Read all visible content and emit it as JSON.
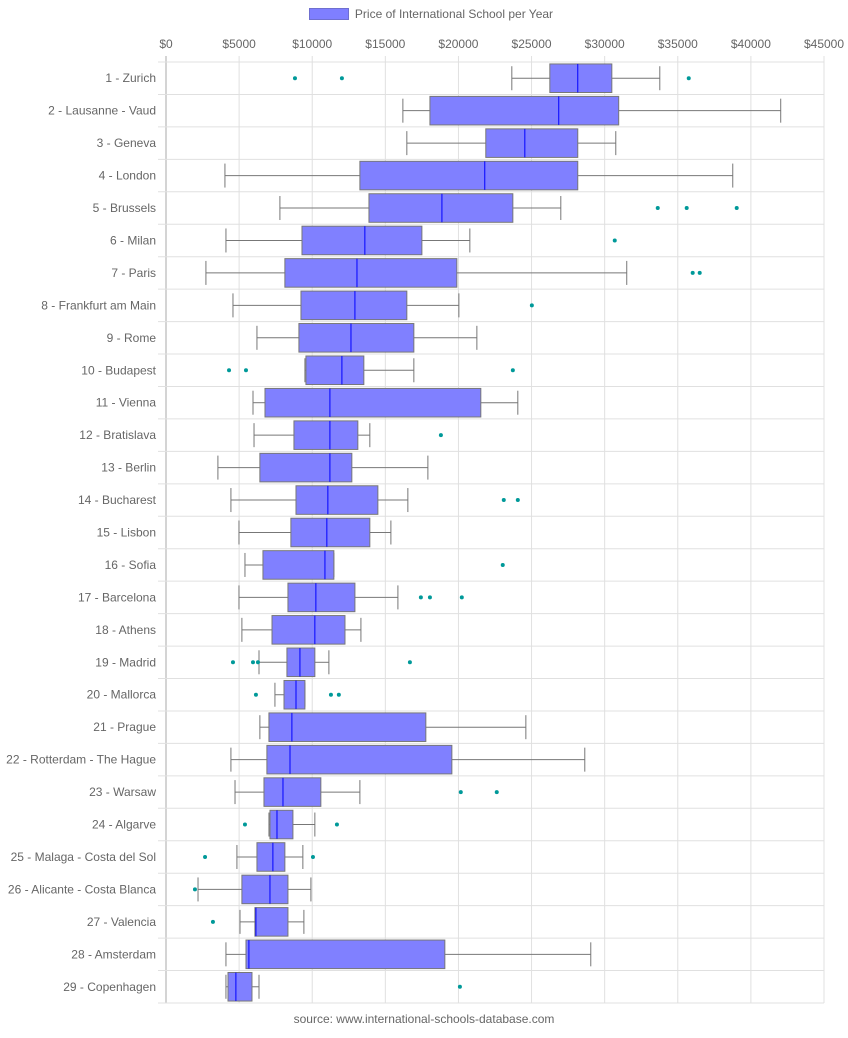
{
  "chart_data": {
    "type": "boxplot",
    "orientation": "horizontal",
    "title": "",
    "legend": {
      "label": "Price of International School per Year",
      "position": "top"
    },
    "source": "source: www.international-schools-database.com",
    "xlabel": "",
    "ylabel": "",
    "xlim": [
      0,
      45000
    ],
    "x_ticks": [
      "$0",
      "$5000",
      "$10000",
      "$15000",
      "$20000",
      "$25000",
      "$30000",
      "$35000",
      "$40000",
      "$45000"
    ],
    "x_tick_values": [
      0,
      5000,
      10000,
      15000,
      20000,
      25000,
      30000,
      35000,
      40000,
      45000
    ],
    "grid": true,
    "colors": {
      "box_fill": "#8080ff",
      "box_stroke": "#777777",
      "median": "#0000ff",
      "whisker": "#777777",
      "outlier": "#009999",
      "grid": "#e0e0e0"
    },
    "categories": [
      "1 - Zurich",
      "2 - Lausanne - Vaud",
      "3 - Geneva",
      "4 - London",
      "5 - Brussels",
      "6 - Milan",
      "7 - Paris",
      "8 - Frankfurt am Main",
      "9 - Rome",
      "10 - Budapest",
      "11 - Vienna",
      "12 - Bratislava",
      "13 - Berlin",
      "14 - Bucharest",
      "15 - Lisbon",
      "16 - Sofia",
      "17 - Barcelona",
      "18 - Athens",
      "19 - Madrid",
      "20 - Mallorca",
      "21 - Prague",
      "22 - Rotterdam - The Hague",
      "23 - Warsaw",
      "24 - Algarve",
      "25 - Malaga - Costa del Sol",
      "26 - Alicante - Costa Blanca",
      "27 - Valencia",
      "28 - Amsterdam",
      "29 - Copenhagen"
    ],
    "series": [
      {
        "name": "Price of International School per Year",
        "boxes": [
          {
            "min": 23650,
            "q1": 26250,
            "median": 28160,
            "q3": 30490,
            "max": 33770,
            "outliers": [
              8820,
              12030,
              35750
            ]
          },
          {
            "min": 16200,
            "q1": 18050,
            "median": 26860,
            "q3": 30960,
            "max": 42040,
            "outliers": []
          },
          {
            "min": 16470,
            "q1": 21870,
            "median": 24540,
            "q3": 28160,
            "max": 30760,
            "outliers": []
          },
          {
            "min": 4030,
            "q1": 13260,
            "median": 21800,
            "q3": 28160,
            "max": 38760,
            "outliers": []
          },
          {
            "min": 7790,
            "q1": 13880,
            "median": 18870,
            "q3": 23720,
            "max": 27000,
            "outliers": [
              33630,
              35610,
              39030
            ]
          },
          {
            "min": 4100,
            "q1": 9300,
            "median": 13600,
            "q3": 17500,
            "max": 20780,
            "outliers": [
              30690
            ]
          },
          {
            "min": 2730,
            "q1": 8130,
            "median": 13060,
            "q3": 19890,
            "max": 31510,
            "outliers": [
              36020,
              36500
            ]
          },
          {
            "min": 4580,
            "q1": 9230,
            "median": 12920,
            "q3": 16470,
            "max": 20030,
            "outliers": [
              25020
            ]
          },
          {
            "min": 6220,
            "q1": 9090,
            "median": 12650,
            "q3": 16950,
            "max": 21260,
            "outliers": []
          },
          {
            "min": 9500,
            "q1": 9570,
            "median": 12030,
            "q3": 13530,
            "max": 16950,
            "outliers": [
              4310,
              5470,
              23720
            ]
          },
          {
            "min": 5950,
            "q1": 6770,
            "median": 11210,
            "q3": 21530,
            "max": 24060,
            "outliers": []
          },
          {
            "min": 6020,
            "q1": 8750,
            "median": 11210,
            "q3": 13120,
            "max": 13940,
            "outliers": [
              18800
            ]
          },
          {
            "min": 3550,
            "q1": 6420,
            "median": 11210,
            "q3": 12710,
            "max": 17910,
            "outliers": []
          },
          {
            "min": 4440,
            "q1": 8890,
            "median": 11070,
            "q3": 14490,
            "max": 16540,
            "outliers": [
              23100,
              24060
            ]
          },
          {
            "min": 4990,
            "q1": 8540,
            "median": 11000,
            "q3": 13940,
            "max": 15380,
            "outliers": []
          },
          {
            "min": 5400,
            "q1": 6630,
            "median": 10870,
            "q3": 11480,
            "max": 11480,
            "outliers": [
              23030
            ]
          },
          {
            "min": 4990,
            "q1": 8340,
            "median": 10250,
            "q3": 12920,
            "max": 15860,
            "outliers": [
              17430,
              18050,
              20230
            ]
          },
          {
            "min": 5190,
            "q1": 7250,
            "median": 10180,
            "q3": 12240,
            "max": 13330,
            "outliers": []
          },
          {
            "min": 6360,
            "q1": 8270,
            "median": 9160,
            "q3": 10180,
            "max": 11140,
            "outliers": [
              4580,
              5950,
              6290,
              16680
            ]
          },
          {
            "min": 7450,
            "q1": 8070,
            "median": 8890,
            "q3": 9500,
            "max": 9500,
            "outliers": [
              6150,
              11280,
              11820
            ]
          },
          {
            "min": 6420,
            "q1": 7040,
            "median": 8610,
            "q3": 17770,
            "max": 24610,
            "outliers": []
          },
          {
            "min": 4440,
            "q1": 6900,
            "median": 8480,
            "q3": 19550,
            "max": 28640,
            "outliers": []
          },
          {
            "min": 4720,
            "q1": 6700,
            "median": 8000,
            "q3": 10590,
            "max": 13260,
            "outliers": [
              20160,
              22620
            ]
          },
          {
            "min": 7040,
            "q1": 7110,
            "median": 7590,
            "q3": 8680,
            "max": 10180,
            "outliers": [
              5400,
              11690
            ]
          },
          {
            "min": 4850,
            "q1": 6220,
            "median": 7310,
            "q3": 8130,
            "max": 9360,
            "outliers": [
              2670,
              10050
            ]
          },
          {
            "min": 2190,
            "q1": 5190,
            "median": 7110,
            "q3": 8340,
            "max": 9910,
            "outliers": [
              1980
            ]
          },
          {
            "min": 5060,
            "q1": 6080,
            "median": 6150,
            "q3": 8340,
            "max": 9430,
            "outliers": [
              3210
            ]
          },
          {
            "min": 4100,
            "q1": 5470,
            "median": 5670,
            "q3": 19070,
            "max": 29050,
            "outliers": []
          },
          {
            "min": 4100,
            "q1": 4240,
            "median": 4780,
            "q3": 5880,
            "max": 6360,
            "outliers": [
              20100
            ]
          }
        ]
      }
    ]
  }
}
